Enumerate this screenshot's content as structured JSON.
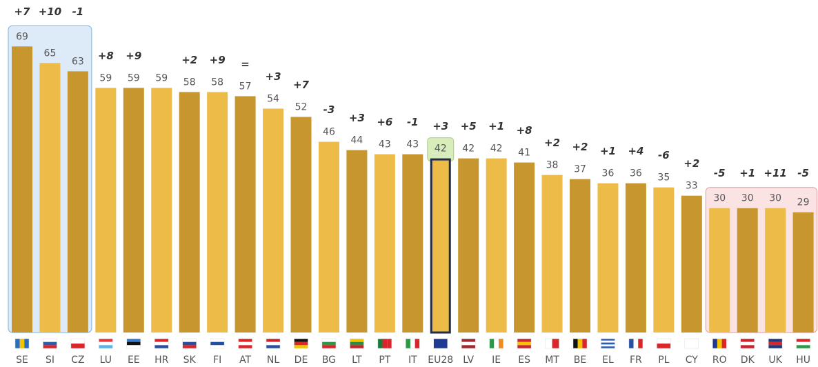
{
  "chart_data": {
    "type": "bar",
    "categories": [
      "SE",
      "SI",
      "CZ",
      "LU",
      "EE",
      "HR",
      "SK",
      "FI",
      "AT",
      "NL",
      "DE",
      "BG",
      "LT",
      "PT",
      "IT",
      "EU28",
      "LV",
      "IE",
      "ES",
      "MT",
      "BE",
      "EL",
      "FR",
      "PL",
      "CY",
      "RO",
      "DK",
      "UK",
      "HU"
    ],
    "values": [
      69,
      65,
      63,
      59,
      59,
      59,
      58,
      58,
      57,
      54,
      52,
      46,
      44,
      43,
      43,
      42,
      42,
      42,
      41,
      38,
      37,
      36,
      36,
      35,
      33,
      30,
      30,
      30,
      29
    ],
    "annotations": [
      "+7",
      "+10",
      "-1",
      "+8",
      "+9",
      null,
      "+2",
      "+9",
      "=",
      "+3",
      "+7",
      "-3",
      "+3",
      "+6",
      "-1",
      "+3",
      "+5",
      "+1",
      "+8",
      "+2",
      "+2",
      "+1",
      "+4",
      "-6",
      "+2",
      "-5",
      "+1",
      "+11",
      "-5"
    ],
    "colors": [
      "#c8962f",
      "#ecbb48"
    ]
  }
}
